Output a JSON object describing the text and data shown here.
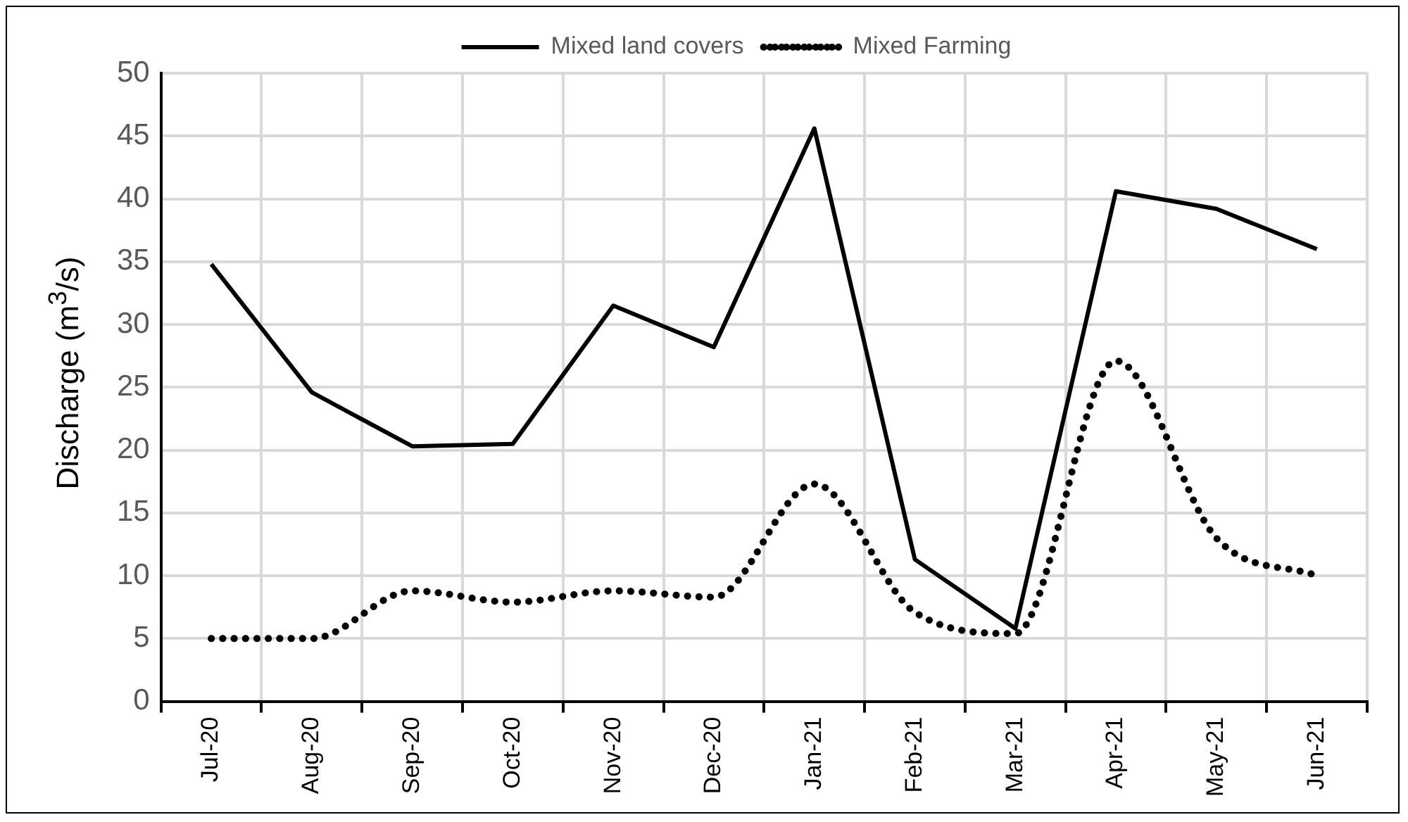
{
  "chart_data": {
    "type": "line",
    "ylabel": "Discharge (m$^{3}$/s)",
    "categories": [
      "Jul-20",
      "Aug-20",
      "Sep-20",
      "Oct-20",
      "Nov-20",
      "Dec-20",
      "Jan-21",
      "Feb-21",
      "Mar-21",
      "Apr-21",
      "May-21",
      "Jun-21"
    ],
    "series": [
      {
        "name": "Mixed land covers",
        "color": "#000000",
        "line_style": "solid",
        "values": [
          34.8,
          24.6,
          20.3,
          20.5,
          31.5,
          28.2,
          45.6,
          11.3,
          5.8,
          40.6,
          39.2,
          36.0
        ]
      },
      {
        "name": "Mixed Farming",
        "color": "#000000",
        "line_style": "dotted",
        "values": [
          5.0,
          5.0,
          8.8,
          7.9,
          8.8,
          8.3,
          17.3,
          7.1,
          5.4,
          27.1,
          13.0,
          10.0
        ]
      }
    ],
    "ylim": [
      0,
      50
    ],
    "yticks": [
      0,
      5,
      10,
      15,
      20,
      25,
      30,
      35,
      40,
      45,
      50
    ],
    "grid": true,
    "legend": "top",
    "marker": "none"
  }
}
